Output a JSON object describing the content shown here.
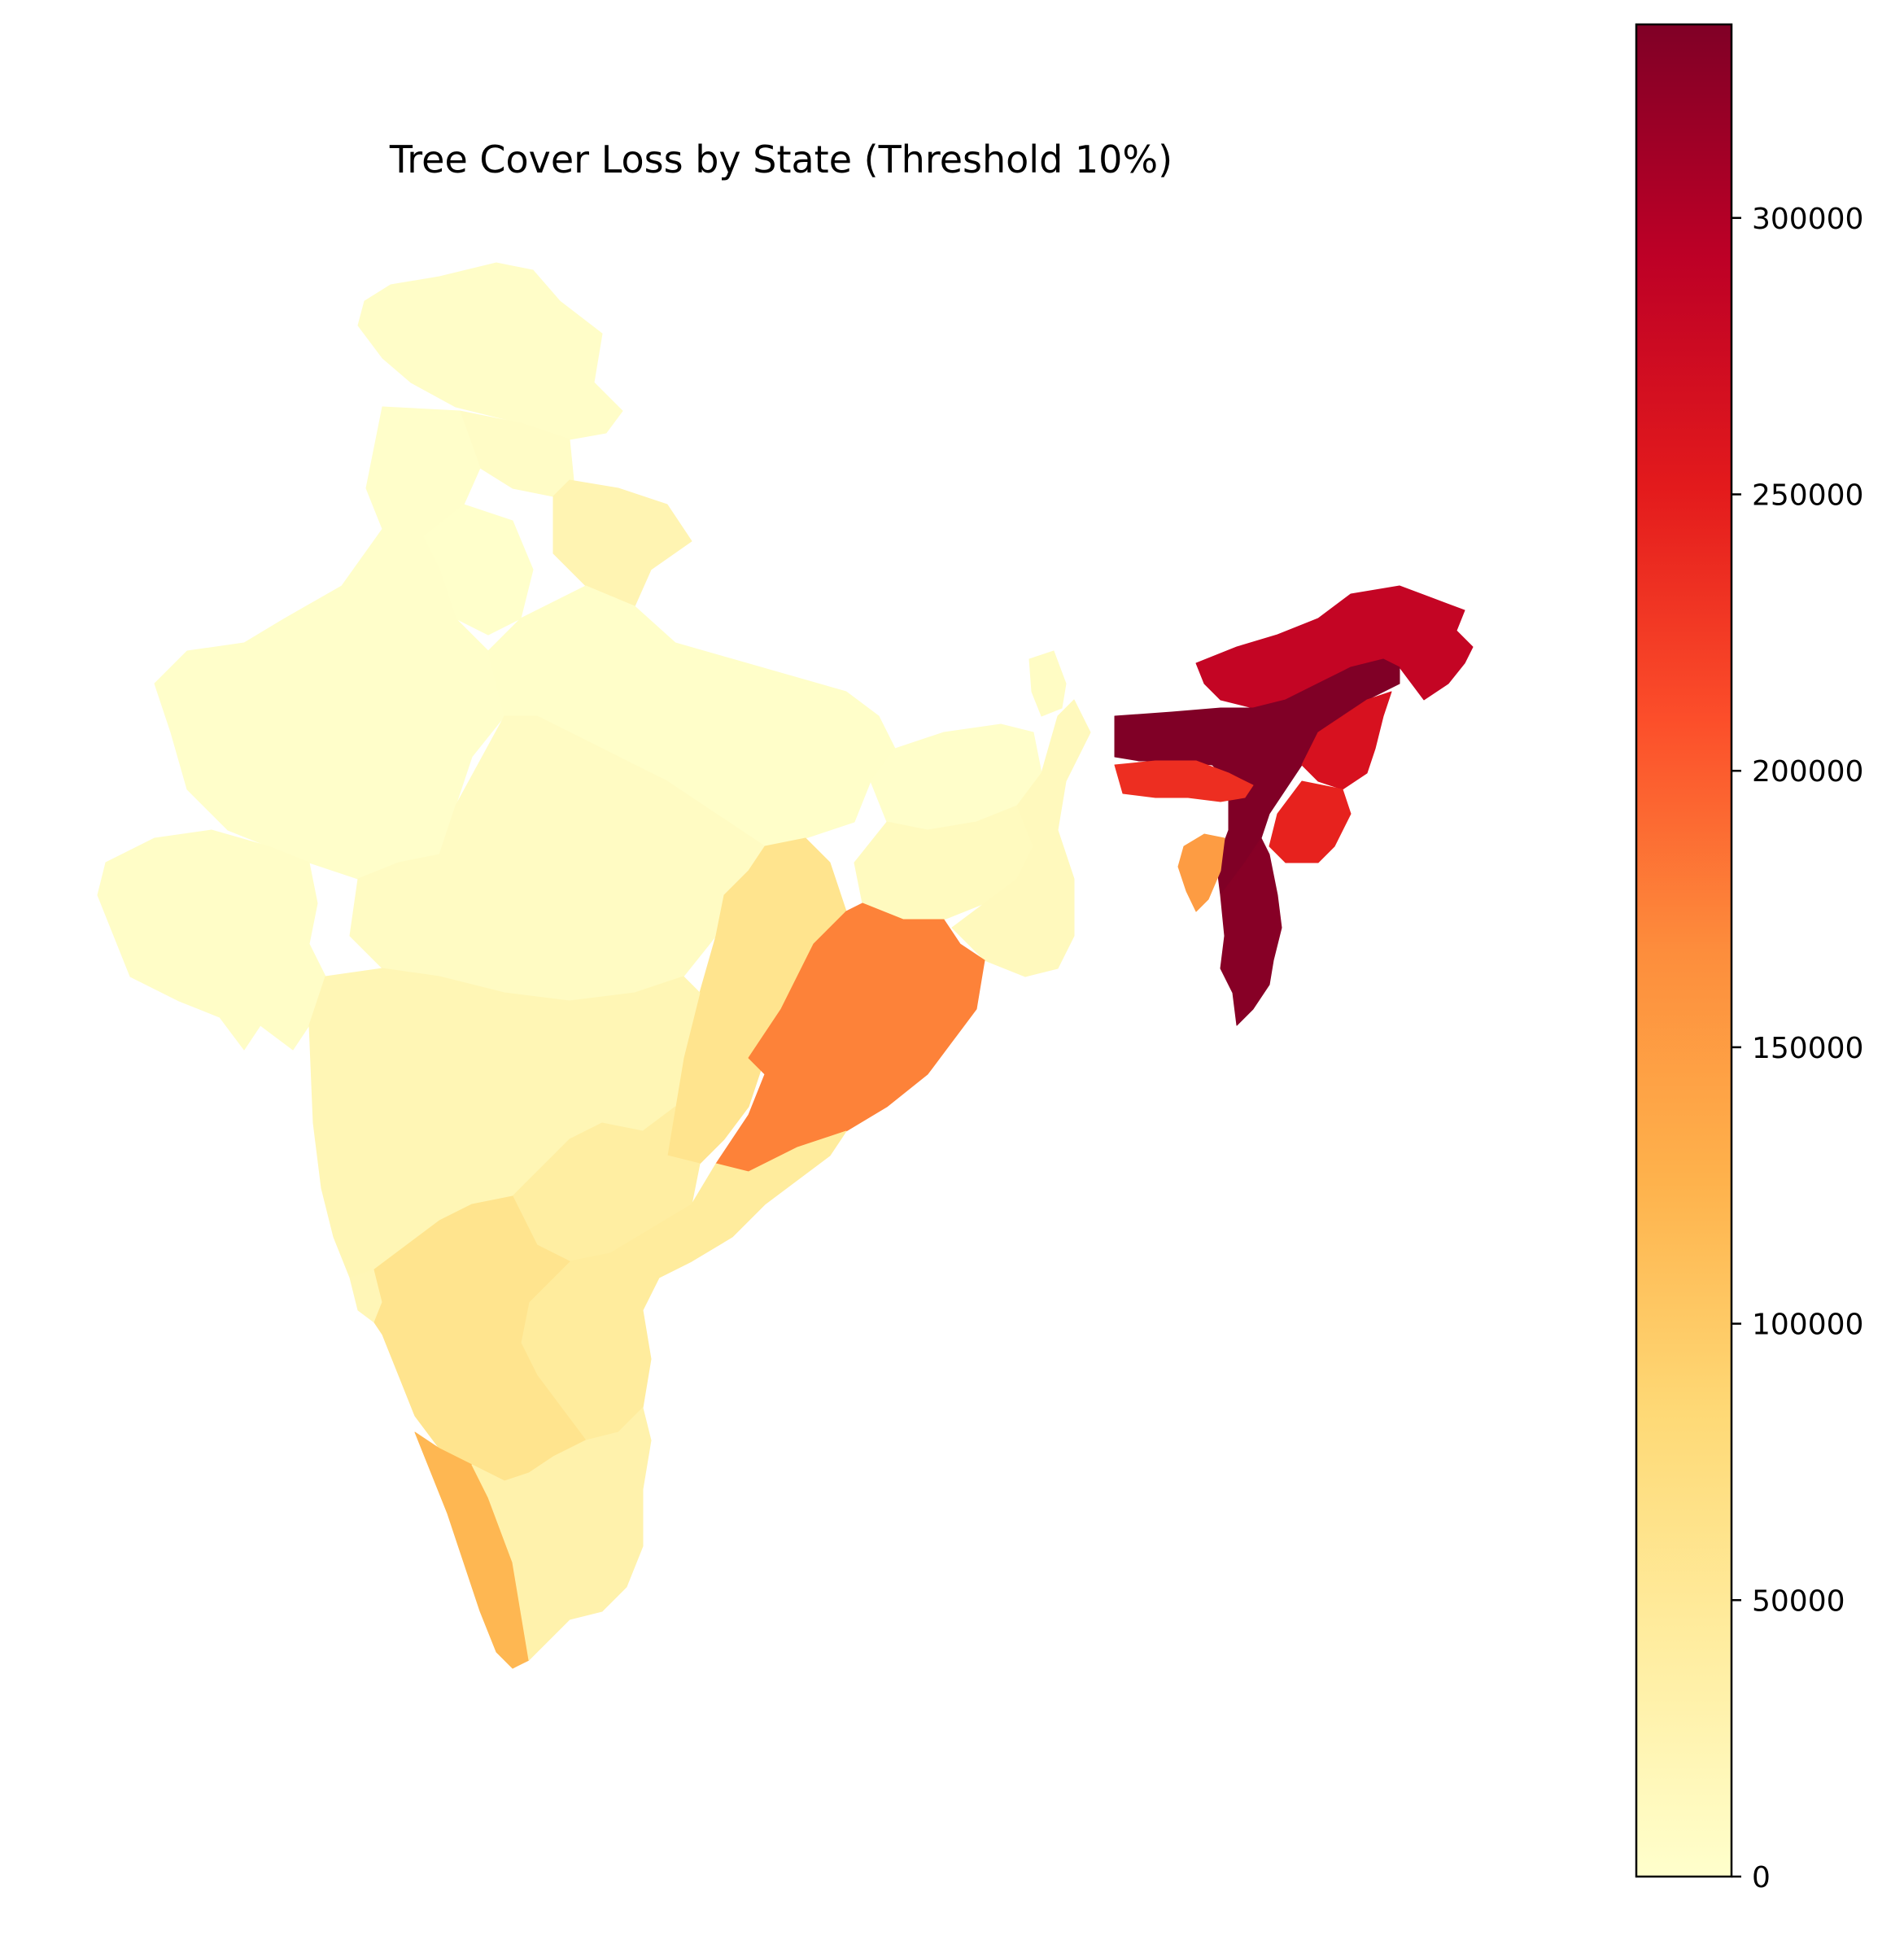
{
  "title": "Tree Cover Loss by State (Threshold 10%)",
  "colors": {
    "background": "#ffffff",
    "colormap": "YlOrRd",
    "stops": [
      "#ffffcc",
      "#ffeda0",
      "#fed976",
      "#feb24c",
      "#fd8d3c",
      "#fc4e2a",
      "#e31a1c",
      "#bd0026",
      "#800026"
    ]
  },
  "colorbar": {
    "min": 0,
    "max": 335000,
    "ticks": [
      {
        "value": 0,
        "label": "0"
      },
      {
        "value": 50000,
        "label": "50000"
      },
      {
        "value": 100000,
        "label": "100000"
      },
      {
        "value": 150000,
        "label": "150000"
      },
      {
        "value": 200000,
        "label": "200000"
      },
      {
        "value": 250000,
        "label": "250000"
      },
      {
        "value": 300000,
        "label": "300000"
      }
    ]
  },
  "chart_data": {
    "type": "choropleth",
    "title": "Tree Cover Loss by State (Threshold 10%)",
    "value_range": [
      0,
      335000
    ],
    "note_units": "",
    "regions": [
      {
        "name": "Jammu and Kashmir",
        "value": 4000
      },
      {
        "name": "Himachal Pradesh",
        "value": 6000
      },
      {
        "name": "Punjab",
        "value": 1500
      },
      {
        "name": "Uttarakhand",
        "value": 25000
      },
      {
        "name": "Haryana",
        "value": 1000
      },
      {
        "name": "Rajasthan",
        "value": 1500
      },
      {
        "name": "Uttar Pradesh",
        "value": 3000
      },
      {
        "name": "Bihar",
        "value": 2000
      },
      {
        "name": "Sikkim",
        "value": 8000
      },
      {
        "name": "Gujarat",
        "value": 5000
      },
      {
        "name": "Madhya Pradesh",
        "value": 9000
      },
      {
        "name": "Jharkhand",
        "value": 12000
      },
      {
        "name": "West Bengal",
        "value": 14000
      },
      {
        "name": "Chhattisgarh",
        "value": 60000
      },
      {
        "name": "Odisha",
        "value": 175000
      },
      {
        "name": "Maharashtra",
        "value": 22000
      },
      {
        "name": "Telangana",
        "value": 40000
      },
      {
        "name": "Andhra Pradesh",
        "value": 45000
      },
      {
        "name": "Goa",
        "value": 20000
      },
      {
        "name": "Karnataka",
        "value": 60000
      },
      {
        "name": "Kerala",
        "value": 120000
      },
      {
        "name": "Tamil Nadu",
        "value": 30000
      },
      {
        "name": "Arunachal Pradesh",
        "value": 285000
      },
      {
        "name": "Assam",
        "value": 335000
      },
      {
        "name": "Meghalaya",
        "value": 235000
      },
      {
        "name": "Nagaland",
        "value": 265000
      },
      {
        "name": "Manipur",
        "value": 245000
      },
      {
        "name": "Mizoram",
        "value": 330000
      },
      {
        "name": "Tripura",
        "value": 150000
      }
    ]
  }
}
